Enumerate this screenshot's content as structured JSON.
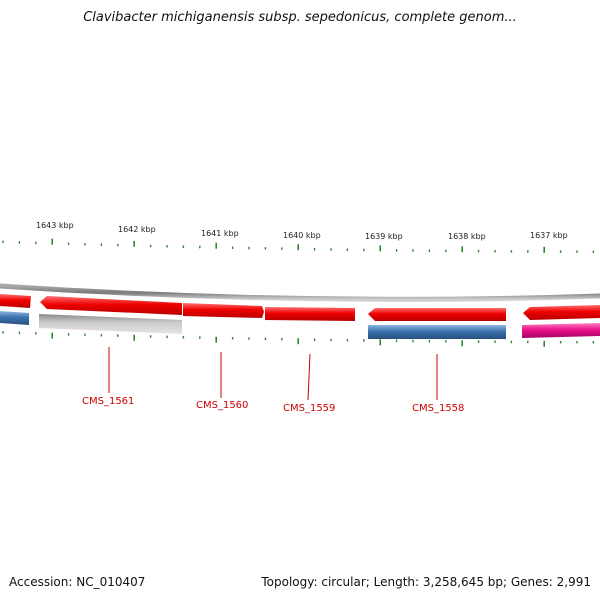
{
  "header": {
    "title": "Clavibacter michiganensis subsp. sepedonicus, complete genom..."
  },
  "ruler": {
    "labels": [
      "1643 kbp",
      "1642 kbp",
      "1641 kbp",
      "1640 kbp",
      "1639 kbp",
      "1638 kbp",
      "1637 kbp"
    ]
  },
  "genes": {
    "labels": [
      "CMS_1561",
      "CMS_1560",
      "CMS_1559",
      "CMS_1558"
    ]
  },
  "colors": {
    "forward_gene": "#e8000b",
    "reverse_gene": "#3a73b0",
    "pseudo_gene": "#b8b8b8",
    "magenta_gene": "#e8128a",
    "backbone": "#888888",
    "tick": "#2a8a2a",
    "label": "#cc0000"
  },
  "footer": {
    "accession": "Accession: NC_010407",
    "summary": "Topology: circular; Length: 3,258,645 bp; Genes: 2,991"
  }
}
